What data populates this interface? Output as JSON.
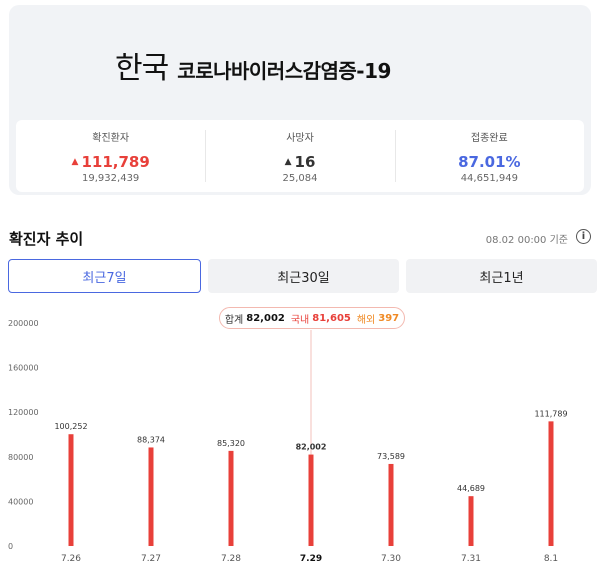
{
  "header": {
    "country": "한국",
    "disease": "코로나바이러스감염증-19"
  },
  "stats": [
    {
      "label": "확진환자",
      "value": "111,789",
      "sub": "19,932,439",
      "trend": "up",
      "color": "#e8403a"
    },
    {
      "label": "사망자",
      "value": "16",
      "sub": "25,084",
      "trend": "up",
      "color": "#333333"
    },
    {
      "label": "접종완료",
      "value": "87.01%",
      "sub": "44,651,949",
      "trend": "none",
      "color": "#4a68e0"
    }
  ],
  "section": {
    "title": "확진자 추이",
    "date": "08.02 00:00 기준",
    "info_icon": "info-circle-icon"
  },
  "tabs": [
    {
      "label": "최근7일",
      "active": true
    },
    {
      "label": "최근30일",
      "active": false
    },
    {
      "label": "최근1년",
      "active": false
    }
  ],
  "tooltip": {
    "total_label": "합계",
    "total_value": "82,002",
    "domestic_label": "국내",
    "domestic_value": "81,605",
    "overseas_label": "해외",
    "overseas_value": "397"
  },
  "colors": {
    "accent_blue": "#4a68e0",
    "bar_red": "#e8403a",
    "overseas_orange": "#f08a25"
  },
  "chart_data": {
    "type": "bar",
    "categories": [
      "7.26",
      "7.27",
      "7.28",
      "7.29",
      "7.30",
      "7.31",
      "8.1"
    ],
    "values": [
      100252,
      88374,
      85320,
      82002,
      73589,
      44689,
      111789
    ],
    "labels": [
      "100,252",
      "88,374",
      "85,320",
      "82,002",
      "73,589",
      "44,689",
      "111,789"
    ],
    "ylim": [
      0,
      200000
    ],
    "yticks": [
      0,
      40000,
      80000,
      120000,
      160000,
      200000
    ],
    "selected_index": 3,
    "grid": false
  }
}
